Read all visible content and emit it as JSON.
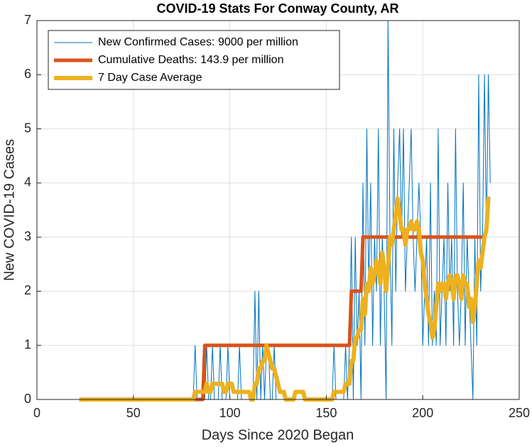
{
  "chart_data": {
    "type": "line",
    "title": "COVID-19 Stats For Conway County, AR",
    "x_label": "Days Since 2020 Began",
    "y_label": "New COVID-19 Cases",
    "x": [
      22,
      23,
      24,
      25,
      26,
      27,
      28,
      29,
      30,
      31,
      32,
      33,
      34,
      35,
      36,
      37,
      38,
      39,
      40,
      41,
      42,
      43,
      44,
      45,
      46,
      47,
      48,
      49,
      50,
      51,
      52,
      53,
      54,
      55,
      56,
      57,
      58,
      59,
      60,
      61,
      62,
      63,
      64,
      65,
      66,
      67,
      68,
      69,
      70,
      71,
      72,
      73,
      74,
      75,
      76,
      77,
      78,
      79,
      80,
      81,
      82,
      83,
      84,
      85,
      86,
      87,
      88,
      89,
      90,
      91,
      92,
      93,
      94,
      95,
      96,
      97,
      98,
      99,
      100,
      101,
      102,
      103,
      104,
      105,
      106,
      107,
      108,
      109,
      110,
      111,
      112,
      113,
      114,
      115,
      116,
      117,
      118,
      119,
      120,
      121,
      122,
      123,
      124,
      125,
      126,
      127,
      128,
      129,
      130,
      131,
      132,
      133,
      134,
      135,
      136,
      137,
      138,
      139,
      140,
      141,
      142,
      143,
      144,
      145,
      146,
      147,
      148,
      149,
      150,
      151,
      152,
      153,
      154,
      155,
      156,
      157,
      158,
      159,
      160,
      161,
      162,
      163,
      164,
      165,
      166,
      167,
      168,
      169,
      170,
      171,
      172,
      173,
      174,
      175,
      176,
      177,
      178,
      179,
      180,
      181,
      182,
      183,
      184,
      185,
      186,
      187,
      188,
      189,
      190,
      191,
      192,
      193,
      194,
      195,
      196,
      197,
      198,
      199,
      200,
      201,
      202,
      203,
      204,
      205,
      206,
      207,
      208,
      209,
      210,
      211,
      212,
      213,
      214,
      215,
      216,
      217,
      218,
      219,
      220,
      221,
      222,
      223,
      224,
      225,
      226,
      227,
      228,
      229,
      230,
      231,
      232,
      233,
      234,
      235
    ],
    "series": [
      {
        "name": "New Confirmed Cases: 9000 per million",
        "color": "#0072bd",
        "width": 1,
        "values": [
          0,
          0,
          0,
          0,
          0,
          0,
          0,
          0,
          0,
          0,
          0,
          0,
          0,
          0,
          0,
          0,
          0,
          0,
          0,
          0,
          0,
          0,
          0,
          0,
          0,
          0,
          0,
          0,
          0,
          0,
          0,
          0,
          0,
          0,
          0,
          0,
          0,
          0,
          0,
          0,
          0,
          0,
          0,
          0,
          0,
          0,
          0,
          0,
          0,
          0,
          0,
          0,
          0,
          0,
          0,
          0,
          0,
          0,
          0,
          0,
          1,
          0,
          0,
          0,
          0,
          0,
          1,
          0,
          0,
          1,
          0,
          0,
          0,
          1,
          0,
          0,
          0,
          1,
          0,
          0,
          0,
          0,
          0,
          1,
          0,
          0,
          0,
          0,
          0,
          0,
          0,
          2,
          0,
          2,
          0,
          1,
          0,
          1,
          1,
          0,
          0,
          1,
          0,
          0,
          0,
          0,
          0,
          0,
          0,
          0,
          0,
          0,
          0,
          0,
          0,
          0,
          0,
          0,
          0,
          0,
          0,
          0,
          0,
          0,
          0,
          0,
          0,
          0,
          0,
          0,
          0,
          0,
          1,
          0,
          0,
          0,
          0,
          0,
          1,
          0,
          1,
          3,
          0,
          3,
          1,
          2,
          0,
          4,
          1,
          5,
          2,
          4,
          1,
          3,
          2,
          5,
          1,
          3,
          2,
          0,
          7,
          3,
          1,
          5,
          2,
          4,
          5,
          3,
          5,
          2,
          3,
          4,
          5,
          3,
          2,
          3,
          4,
          3,
          1,
          2,
          3,
          1,
          4,
          1,
          2,
          1,
          5,
          1,
          2,
          3,
          1,
          4,
          2,
          3,
          1,
          5,
          2,
          1,
          2,
          4,
          1,
          3,
          2,
          1,
          0,
          3,
          1,
          6,
          2,
          3,
          6,
          3,
          6,
          4
        ]
      },
      {
        "name": "Cumulative Deaths: 143.9 per million",
        "color": "#d95319",
        "width": 5,
        "values": [
          0,
          0,
          0,
          0,
          0,
          0,
          0,
          0,
          0,
          0,
          0,
          0,
          0,
          0,
          0,
          0,
          0,
          0,
          0,
          0,
          0,
          0,
          0,
          0,
          0,
          0,
          0,
          0,
          0,
          0,
          0,
          0,
          0,
          0,
          0,
          0,
          0,
          0,
          0,
          0,
          0,
          0,
          0,
          0,
          0,
          0,
          0,
          0,
          0,
          0,
          0,
          0,
          0,
          0,
          0,
          0,
          0,
          0,
          0,
          0,
          0,
          0,
          0,
          0,
          0,
          1,
          1,
          1,
          1,
          1,
          1,
          1,
          1,
          1,
          1,
          1,
          1,
          1,
          1,
          1,
          1,
          1,
          1,
          1,
          1,
          1,
          1,
          1,
          1,
          1,
          1,
          1,
          1,
          1,
          1,
          1,
          1,
          1,
          1,
          1,
          1,
          1,
          1,
          1,
          1,
          1,
          1,
          1,
          1,
          1,
          1,
          1,
          1,
          1,
          1,
          1,
          1,
          1,
          1,
          1,
          1,
          1,
          1,
          1,
          1,
          1,
          1,
          1,
          1,
          1,
          1,
          1,
          1,
          1,
          1,
          1,
          1,
          1,
          1,
          1,
          1,
          2,
          2,
          2,
          2,
          2,
          2,
          3,
          3,
          3,
          3,
          3,
          3,
          3,
          3,
          3,
          3,
          3,
          3,
          3,
          3,
          3,
          3,
          3,
          3,
          3,
          3,
          3,
          3,
          3,
          3,
          3,
          3,
          3,
          3,
          3,
          3,
          3,
          3,
          3,
          3,
          3,
          3,
          3,
          3,
          3,
          3,
          3,
          3,
          3,
          3,
          3,
          3,
          3,
          3,
          3,
          3,
          3,
          3,
          3,
          3,
          3,
          3,
          3,
          3,
          3,
          3,
          3,
          3,
          3,
          3,
          3,
          null,
          null
        ]
      },
      {
        "name": "7 Day Case Average",
        "color": "#edb120",
        "width": 6,
        "values": [
          0,
          0,
          0,
          0,
          0,
          0,
          0,
          0,
          0,
          0,
          0,
          0,
          0,
          0,
          0,
          0,
          0,
          0,
          0,
          0,
          0,
          0,
          0,
          0,
          0,
          0,
          0,
          0,
          0,
          0,
          0,
          0,
          0,
          0,
          0,
          0,
          0,
          0,
          0,
          0,
          0,
          0,
          0,
          0,
          0,
          0,
          0,
          0,
          0,
          0,
          0,
          0,
          0,
          0,
          0,
          0,
          0,
          0,
          0,
          0,
          0.14,
          0.14,
          0.14,
          0.14,
          0.14,
          0.14,
          0.29,
          0.14,
          0.14,
          0.29,
          0.29,
          0.29,
          0.29,
          0.29,
          0.29,
          0.14,
          0.14,
          0.29,
          0.29,
          0.29,
          0.14,
          0.14,
          0.14,
          0.14,
          0.14,
          0.14,
          0.14,
          0.14,
          0.14,
          0,
          0,
          0.29,
          0.29,
          0.57,
          0.57,
          0.71,
          0.71,
          1,
          0.86,
          0.71,
          0.57,
          0.57,
          0.43,
          0.29,
          0.14,
          0.14,
          0.14,
          0,
          0,
          0,
          0,
          0,
          0.14,
          0.14,
          0.14,
          0.14,
          0.14,
          0,
          0,
          0,
          0,
          0,
          0,
          0,
          0,
          0,
          0,
          0,
          0,
          0,
          0,
          0,
          0.14,
          0.14,
          0.14,
          0.14,
          0.14,
          0.14,
          0.29,
          0.29,
          0.29,
          0.71,
          0.71,
          1.14,
          1.14,
          1.29,
          1.29,
          1.86,
          1.57,
          2.14,
          2,
          2.43,
          2.14,
          2.29,
          2.57,
          2.43,
          2.14,
          2.71,
          2.43,
          2,
          2.43,
          3,
          2.86,
          3.14,
          3.43,
          3.71,
          3.43,
          3.14,
          3.14,
          2.86,
          3.14,
          3.14,
          3.29,
          3.14,
          3.14,
          3.29,
          3.14,
          2.71,
          2.57,
          2.14,
          1.86,
          1.57,
          1.43,
          1.14,
          1.29,
          1.71,
          2.14,
          2,
          2.14,
          2.14,
          1.86,
          2.14,
          2.29,
          2.14,
          1.86,
          2.29,
          2.29,
          2.14,
          1.86,
          2.29,
          2.14,
          2.14,
          1.71,
          1.86,
          1.43,
          1.71,
          2.14,
          2.57,
          2.43,
          2.71,
          3,
          3.14,
          3.71,
          3.71
        ]
      }
    ],
    "xlim": [
      0,
      250
    ],
    "xticks": [
      0,
      50,
      100,
      150,
      200,
      250
    ],
    "ylim": [
      0,
      7
    ],
    "yticks": [
      0,
      1,
      2,
      3,
      4,
      5,
      6,
      7
    ],
    "grid": true,
    "legend": "upper-left"
  }
}
